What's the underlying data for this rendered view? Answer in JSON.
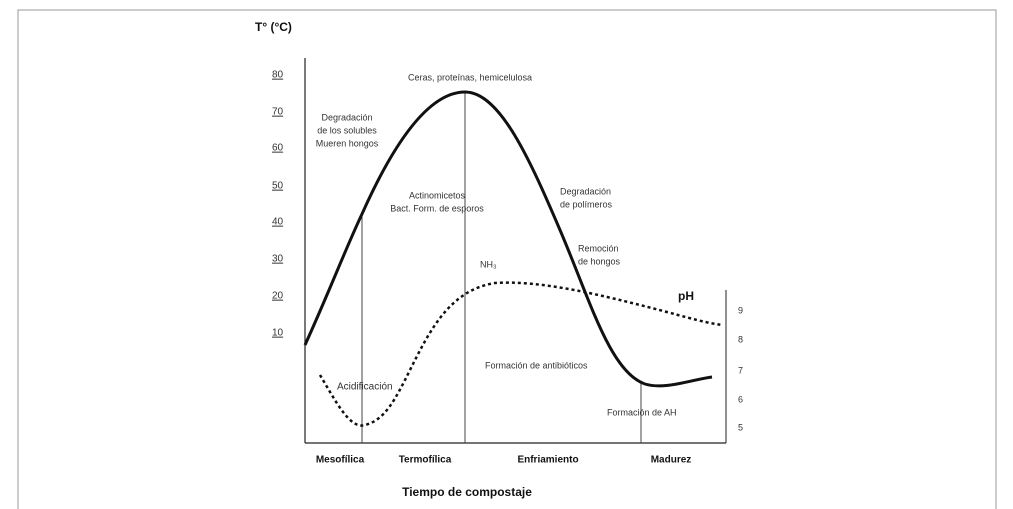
{
  "y_axis": {
    "title": "T° (°C)",
    "ticks": [
      "80",
      "70",
      "60",
      "50",
      "40",
      "30",
      "20",
      "10"
    ]
  },
  "y2_axis": {
    "title": "pH",
    "ticks": [
      "9",
      "8",
      "7",
      "6",
      "5"
    ]
  },
  "x_axis": {
    "title": "Tiempo de compostaje",
    "phases": [
      "Mesofílica",
      "Termofílica",
      "Enfriamiento",
      "Madurez"
    ]
  },
  "annotations": {
    "peak": "Ceras, proteínas, hemicelulosa",
    "mesophilic": [
      "Degradación",
      "de los solubles",
      "Mueren hongos"
    ],
    "thermophilic": [
      "Actinomicetos",
      "Bact. Form. de esporos"
    ],
    "cooling": [
      "Degradación",
      "de polímeros"
    ],
    "fungi": [
      "Remoción",
      "de hongos"
    ],
    "nh3": "NH₃",
    "antibiotics": "Formación de antibióticos",
    "acid": "Acidificación",
    "humic": "Formación de AH"
  }
}
